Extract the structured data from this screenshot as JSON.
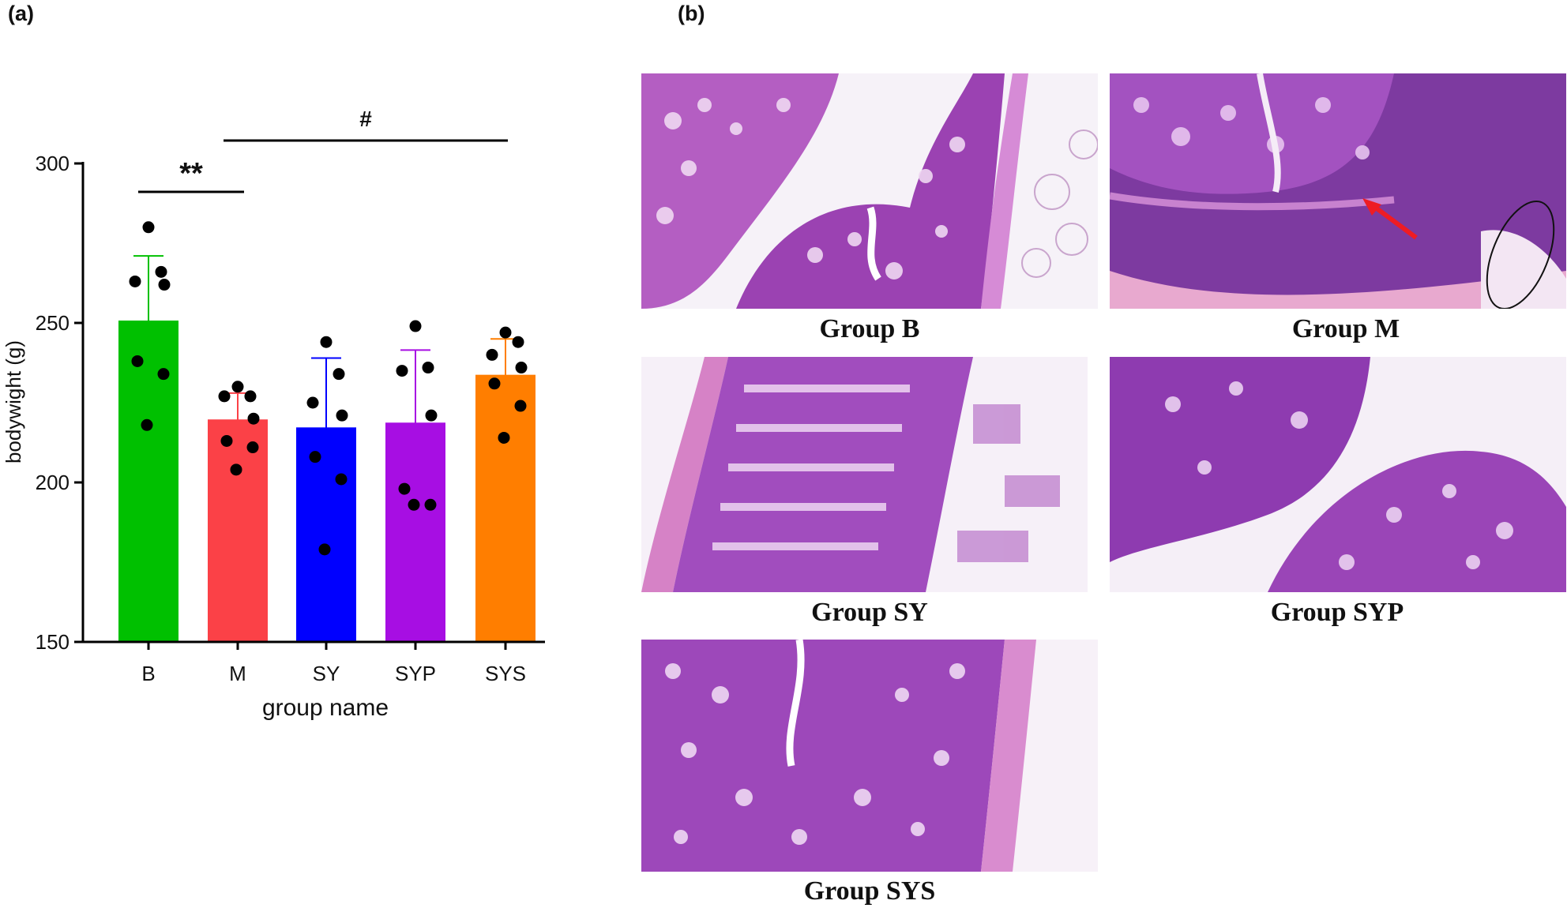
{
  "panel_a_label": "(a)",
  "panel_b_label": "(b)",
  "chart_data": {
    "type": "bar",
    "categories": [
      "B",
      "M",
      "SY",
      "SYP",
      "SYS"
    ],
    "values": [
      250.5,
      219.5,
      217,
      218.5,
      233.5
    ],
    "errors": [
      20.5,
      8.5,
      22,
      23,
      11.5
    ],
    "points": [
      [
        280,
        266,
        263,
        262,
        238,
        234,
        218
      ],
      [
        230,
        227,
        227,
        220,
        213,
        211,
        204
      ],
      [
        244,
        234,
        225,
        221,
        208,
        201,
        179
      ],
      [
        249,
        236,
        235,
        221,
        198,
        193,
        193
      ],
      [
        247,
        244,
        240,
        236,
        231,
        224,
        214
      ]
    ],
    "colors": [
      "#00c000",
      "#fb4147",
      "#0000ff",
      "#a70ee3",
      "#ff7e00"
    ],
    "xlabel": "group name",
    "ylabel": "bodywight (g)",
    "ylim": [
      150,
      300
    ],
    "yticks": [
      150,
      200,
      250,
      300
    ],
    "significance": [
      {
        "label": "**",
        "from": 0,
        "to": 1
      },
      {
        "label": "#",
        "from": 1,
        "to": 4
      }
    ]
  },
  "histology": {
    "captions": [
      "Group B",
      "Group M",
      "Group SY",
      "Group SYP",
      "Group SYS"
    ]
  }
}
